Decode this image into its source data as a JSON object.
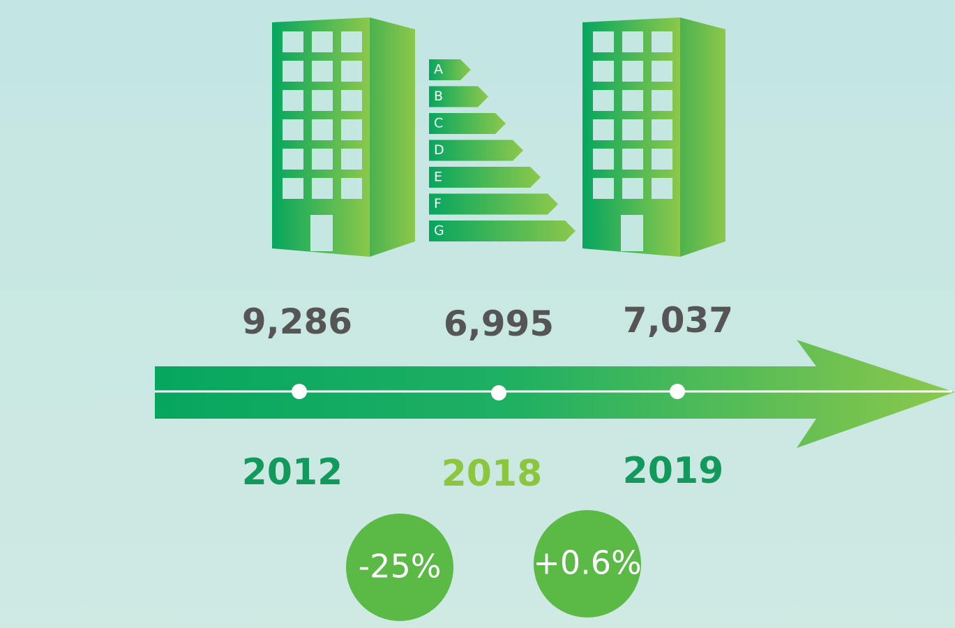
{
  "energy_labels": [
    "A",
    "B",
    "C",
    "D",
    "E",
    "F",
    "G"
  ],
  "timeline": [
    {
      "value": "9,286",
      "year": "2012"
    },
    {
      "value": "6,995",
      "year": "2018"
    },
    {
      "value": "7,037",
      "year": "2019"
    }
  ],
  "changes": [
    "-25%",
    "+0.6%"
  ]
}
